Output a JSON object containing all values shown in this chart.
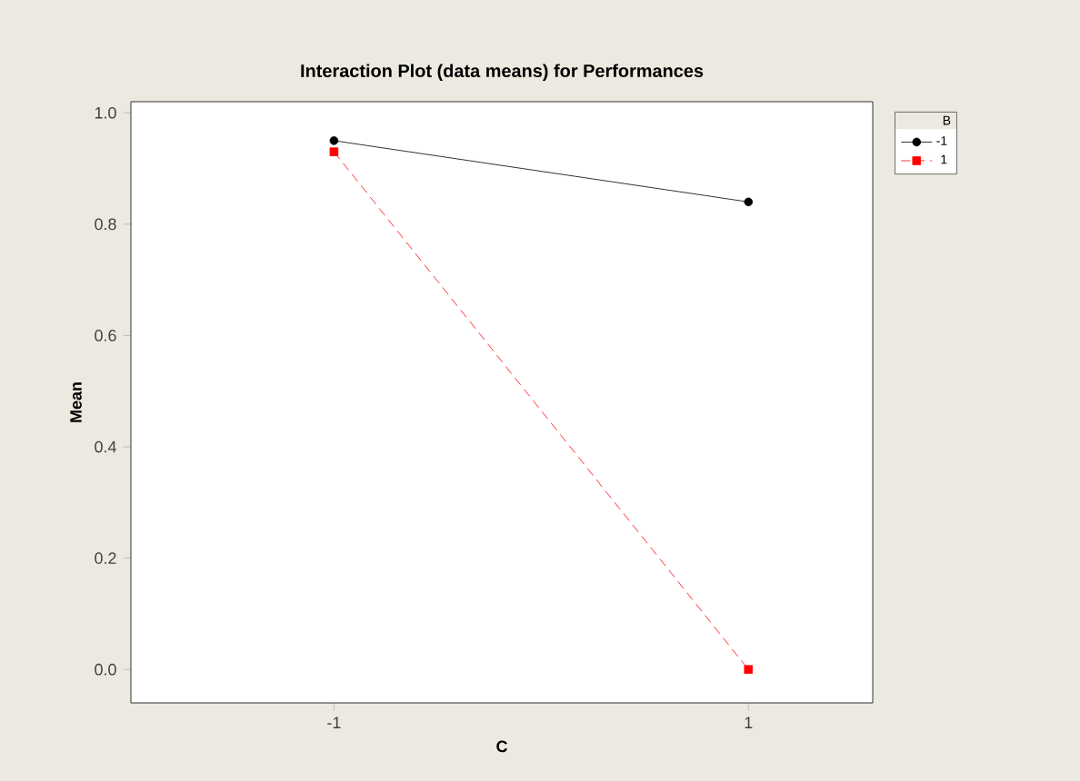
{
  "chart_data": {
    "type": "line",
    "title": "Interaction Plot (data means) for Performances",
    "xlabel": "C",
    "ylabel": "Mean",
    "legend_title": "B",
    "x": [
      -1,
      1
    ],
    "xlim": [
      -1.98,
      1.6
    ],
    "xticks": [
      -1,
      1
    ],
    "ylim": [
      -0.06,
      1.02
    ],
    "yticks": [
      {
        "value": 0,
        "label": "0.0"
      },
      {
        "value": 0.2,
        "label": "0.2"
      },
      {
        "value": 0.4,
        "label": "0.4"
      },
      {
        "value": 0.6,
        "label": "0.6"
      },
      {
        "value": 0.8,
        "label": "0.8"
      },
      {
        "value": 1,
        "label": "1.0"
      }
    ],
    "legend": "top right",
    "grid": false,
    "series": [
      {
        "name": "-1",
        "color": "#000000",
        "values": [
          0.95,
          0.84
        ],
        "marker": "circle",
        "line_style": "solid"
      },
      {
        "name": "1",
        "color": "#ff0000",
        "values": [
          0.93,
          0
        ],
        "marker": "square",
        "line_style": "dashed"
      }
    ]
  }
}
